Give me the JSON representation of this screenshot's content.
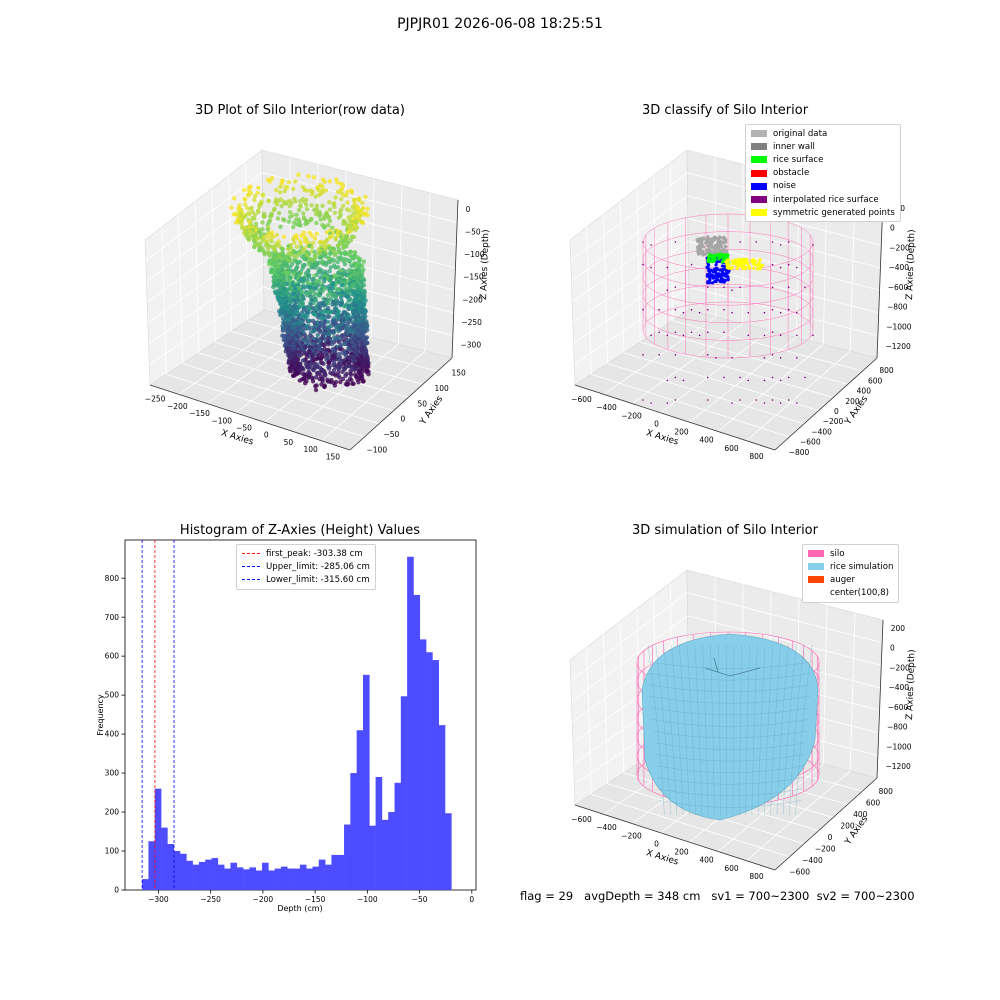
{
  "figure": {
    "suptitle": "PJPJR01 2026-06-08 18:25:51",
    "footer": {
      "flag": "flag = 29",
      "avg_depth": "avgDepth = 348 cm",
      "sv1": "sv1 = 700~2300",
      "sv2": "sv2 = 700~2300"
    }
  },
  "colors": {
    "histogram_bar": "#4d4dff",
    "first_peak_line": "#ff0000",
    "limit_lines": "#0000ff",
    "silo": "#ff69b4",
    "rice_simulation": "#87ceeb",
    "auger": "#ff4500",
    "gray_original": "#b3b3b3",
    "inner_wall": "#808080",
    "rice_surface": "#00ff00",
    "obstacle": "#ff0000",
    "noise": "#0000ff",
    "interpolated": "#800080",
    "symmetric": "#ffff00"
  },
  "chart_data": [
    {
      "type": "scatter3d",
      "title": "3D Plot of Silo Interior(row data)",
      "xlabel": "X Axies",
      "ylabel": "Y Axies",
      "zlabel": "Z Axies (Depth)",
      "x_ticks": [
        "−250",
        "−200",
        "−150",
        "−100",
        "−50",
        "0",
        "50",
        "100",
        "150"
      ],
      "y_ticks": [
        "−100",
        "−50",
        "0",
        "50",
        "100",
        "150"
      ],
      "z_ticks": [
        "0",
        "−50",
        "−100",
        "−150",
        "−200",
        "−250",
        "−300"
      ],
      "colormap": "viridis"
    },
    {
      "type": "scatter3d",
      "title": "3D classify of Silo Interior",
      "xlabel": "X Axies",
      "ylabel": "Y Axies",
      "zlabel": "Z Axies (Depth)",
      "x_ticks": [
        "−600",
        "−400",
        "−200",
        "0",
        "200",
        "400",
        "600",
        "800"
      ],
      "y_ticks": [
        "−800",
        "−600",
        "−400",
        "−200",
        "0",
        "200",
        "400",
        "600",
        "800"
      ],
      "z_ticks": [
        "200",
        "0",
        "−200",
        "−400",
        "−600",
        "−800",
        "−1000",
        "−1200"
      ],
      "legend": [
        {
          "label": "original data",
          "color": "#b3b3b3"
        },
        {
          "label": "inner wall",
          "color": "#808080"
        },
        {
          "label": "rice surface",
          "color": "#00ff00"
        },
        {
          "label": "obstacle",
          "color": "#ff0000"
        },
        {
          "label": "noise",
          "color": "#0000ff"
        },
        {
          "label": "interpolated rice surface",
          "color": "#800080"
        },
        {
          "label": "symmetric generated points",
          "color": "#ffff00"
        }
      ]
    },
    {
      "type": "bar",
      "title": "Histogram of Z-Axies (Height) Values",
      "xlabel": "Depth (cm)",
      "ylabel": "Frequency",
      "xlim": [
        -332,
        4
      ],
      "ylim": [
        0,
        898
      ],
      "x_ticks": [
        -300,
        -250,
        -200,
        -150,
        -100,
        -50,
        0
      ],
      "y_ticks": [
        0,
        100,
        200,
        300,
        400,
        500,
        600,
        700,
        800
      ],
      "bin_start": -315.6,
      "bin_width": 6.04,
      "values": [
        28,
        125,
        260,
        160,
        118,
        100,
        93,
        75,
        65,
        72,
        78,
        82,
        65,
        55,
        70,
        58,
        53,
        58,
        50,
        70,
        50,
        55,
        60,
        55,
        55,
        65,
        55,
        60,
        78,
        65,
        90,
        90,
        168,
        300,
        410,
        552,
        165,
        290,
        180,
        200,
        275,
        497,
        855,
        757,
        643,
        610,
        590,
        423,
        197
      ],
      "vlines": [
        {
          "label": "first_peak: -303.38 cm",
          "x": -303.38,
          "color": "#ff0000"
        },
        {
          "label": "Upper_limit: -285.06 cm",
          "x": -285.06,
          "color": "#0000ff"
        },
        {
          "label": "Lower_limit: -315.60 cm",
          "x": -315.6,
          "color": "#0000ff"
        }
      ]
    },
    {
      "type": "surface3d",
      "title": "3D simulation of Silo Interior",
      "xlabel": "X Axies",
      "ylabel": "Y Axies",
      "zlabel": "Z Axies (Depth)",
      "x_ticks": [
        "−600",
        "−400",
        "−200",
        "0",
        "200",
        "400",
        "600",
        "800"
      ],
      "y_ticks": [
        "−600",
        "−400",
        "−200",
        "0",
        "200",
        "400",
        "600",
        "800"
      ],
      "z_ticks": [
        "200",
        "0",
        "−200",
        "−400",
        "−600",
        "−800",
        "−1000",
        "−1200"
      ],
      "legend": [
        {
          "label": "silo",
          "color": "#ff69b4"
        },
        {
          "label": "rice simulation",
          "color": "#87ceeb"
        },
        {
          "label": "auger",
          "color": "#ff4500"
        },
        {
          "label": "center(100,8)",
          "color": "#ffffff"
        }
      ]
    }
  ]
}
